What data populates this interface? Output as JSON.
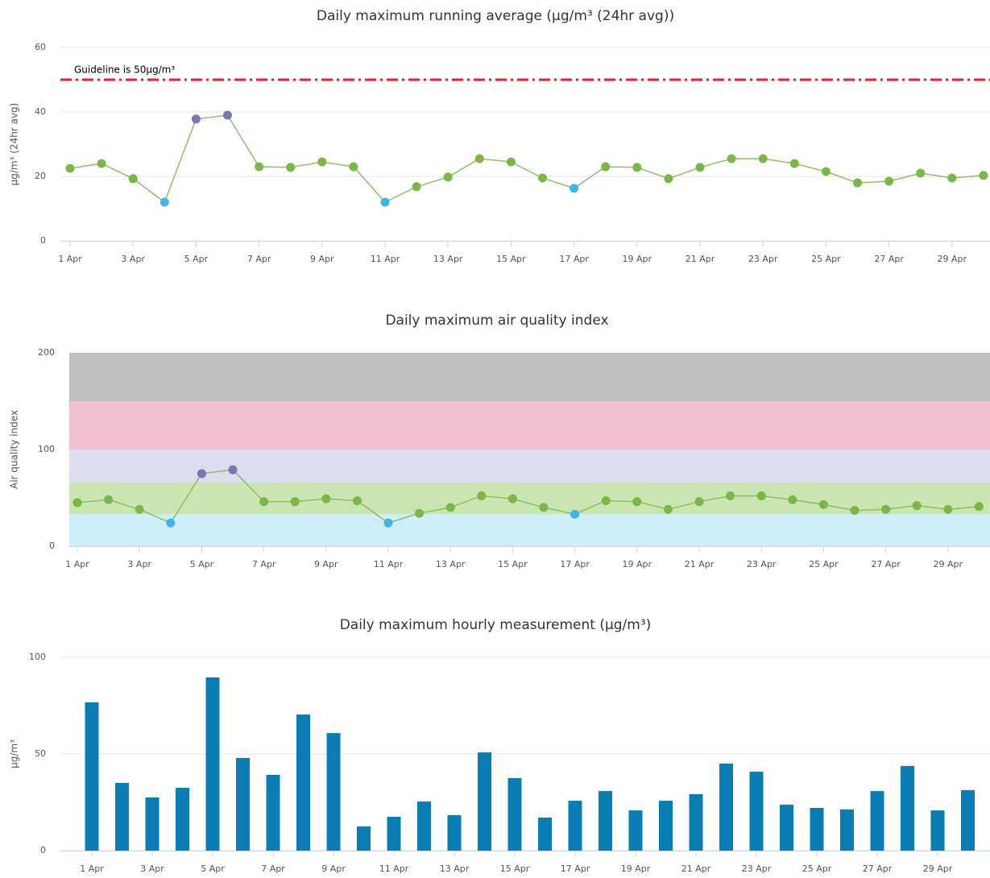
{
  "chart_data": [
    {
      "type": "line",
      "title": "Daily maximum running average (µg/m³ (24hr avg))",
      "y_label": "µg/m³ (24hr avg)",
      "categories": [
        "1 Apr",
        null,
        "3 Apr",
        null,
        "5 Apr",
        null,
        "7 Apr",
        null,
        "9 Apr",
        null,
        "11 Apr",
        null,
        "13 Apr",
        null,
        "15 Apr",
        null,
        "17 Apr",
        null,
        "19 Apr",
        null,
        "21 Apr",
        null,
        "23 Apr",
        null,
        "25 Apr",
        null,
        "27 Apr",
        null,
        "29 Apr",
        null
      ],
      "series": [
        {
          "line_color": "#8cc063",
          "values": [
            22.5,
            24,
            19.3,
            12,
            37.8,
            39,
            23,
            22.8,
            24.5,
            23,
            12,
            16.8,
            19.8,
            25.5,
            24.5,
            19.5,
            16.3,
            23,
            22.8,
            19.3,
            22.8,
            25.5,
            25.5,
            24,
            21.5,
            18,
            18.5,
            21,
            19.5,
            20.3
          ],
          "colors": [
            "#7ab648",
            "#7ab648",
            "#7ab648",
            "#41b6e6",
            "#7b74b5",
            "#7b74b5",
            "#7ab648",
            "#7ab648",
            "#7ab648",
            "#7ab648",
            "#41b6e6",
            "#7ab648",
            "#7ab648",
            "#7ab648",
            "#7ab648",
            "#7ab648",
            "#41b6e6",
            "#7ab648",
            "#7ab648",
            "#7ab648",
            "#7ab648",
            "#7ab648",
            "#7ab648",
            "#7ab648",
            "#7ab648",
            "#7ab648",
            "#7ab648",
            "#7ab648",
            "#7ab648",
            "#7ab648"
          ]
        }
      ],
      "reference_line": {
        "value": 50,
        "label": "Guideline is 50µg/m³",
        "color": "#e8202a"
      },
      "ylim": [
        0,
        60
      ],
      "yticks": [
        0,
        20,
        40,
        60
      ],
      "grid": true
    },
    {
      "type": "line",
      "title": "Daily maximum air quality index",
      "y_label": "Air quality index",
      "categories": [
        "1 Apr",
        null,
        "3 Apr",
        null,
        "5 Apr",
        null,
        "7 Apr",
        null,
        "9 Apr",
        null,
        "11 Apr",
        null,
        "13 Apr",
        null,
        "15 Apr",
        null,
        "17 Apr",
        null,
        "19 Apr",
        null,
        "21 Apr",
        null,
        "23 Apr",
        null,
        "25 Apr",
        null,
        "27 Apr",
        null,
        "29 Apr",
        null
      ],
      "series": [
        {
          "line_color": "#8cc063",
          "values": [
            45,
            48,
            38,
            24,
            75,
            79,
            46,
            46,
            49,
            47,
            24,
            34,
            40,
            52,
            49,
            40,
            33,
            47,
            46,
            38,
            46,
            52,
            52,
            48,
            43,
            37,
            38,
            42,
            38,
            41
          ],
          "colors": [
            "#7ab648",
            "#7ab648",
            "#7ab648",
            "#41b6e6",
            "#7b74b5",
            "#7b74b5",
            "#7ab648",
            "#7ab648",
            "#7ab648",
            "#7ab648",
            "#41b6e6",
            "#7ab648",
            "#7ab648",
            "#7ab648",
            "#7ab648",
            "#7ab648",
            "#41b6e6",
            "#7ab648",
            "#7ab648",
            "#7ab648",
            "#7ab648",
            "#7ab648",
            "#7ab648",
            "#7ab648",
            "#7ab648",
            "#7ab648",
            "#7ab648",
            "#7ab648",
            "#7ab648",
            "#7ab648"
          ]
        }
      ],
      "bands": [
        {
          "from": 0,
          "to": 33,
          "color": "#cdeefb"
        },
        {
          "from": 33,
          "to": 66,
          "color": "#c9e5b2"
        },
        {
          "from": 66,
          "to": 100,
          "color": "#dddded"
        },
        {
          "from": 100,
          "to": 150,
          "color": "#f0c1d1"
        },
        {
          "from": 150,
          "to": 200,
          "color": "#bfbfbf"
        }
      ],
      "ylim": [
        0,
        200
      ],
      "yticks": [
        0,
        100,
        200
      ],
      "grid": false
    },
    {
      "type": "bar",
      "title": "Daily maximum hourly measurement (µg/m³)",
      "y_label": "µg/m³",
      "categories": [
        "1 Apr",
        null,
        "3 Apr",
        null,
        "5 Apr",
        null,
        "7 Apr",
        null,
        "9 Apr",
        null,
        "11 Apr",
        null,
        "13 Apr",
        null,
        "15 Apr",
        null,
        "17 Apr",
        null,
        "19 Apr",
        null,
        "21 Apr",
        null,
        "23 Apr",
        null,
        "25 Apr",
        null,
        "27 Apr",
        null,
        "29 Apr",
        null
      ],
      "series": [
        {
          "color": "#0a7db5",
          "values": [
            76.7,
            35,
            27.5,
            32.5,
            89.6,
            47.9,
            39.2,
            70.4,
            60.8,
            12.5,
            17.5,
            25.4,
            18.3,
            50.8,
            37.5,
            17.1,
            25.8,
            30.8,
            20.8,
            25.8,
            29.2,
            45,
            40.8,
            23.8,
            22.1,
            21.3,
            30.8,
            43.8,
            20.8,
            31.3
          ]
        }
      ],
      "ylim": [
        0,
        100
      ],
      "yticks": [
        0,
        50,
        100
      ],
      "grid": true
    }
  ]
}
